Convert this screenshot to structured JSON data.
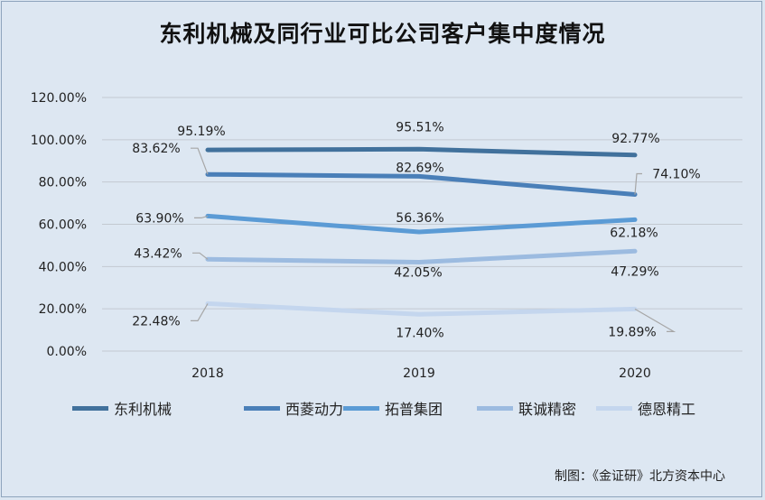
{
  "title": "东利机械及同行业可比公司客户集中度情况",
  "credit": "制图：《金证研》北方资本中心",
  "chart_data": {
    "type": "line",
    "title": "东利机械及同行业可比公司客户集中度情况",
    "categories": [
      "2018",
      "2019",
      "2020"
    ],
    "ylim": [
      0,
      120
    ],
    "yticks": [
      "0.00%",
      "20.00%",
      "40.00%",
      "60.00%",
      "80.00%",
      "100.00%",
      "120.00%"
    ],
    "grid": true,
    "legend_position": "bottom",
    "series": [
      {
        "name": "东利机械",
        "color": "#41719c",
        "values": [
          95.19,
          95.51,
          92.77
        ],
        "labels": [
          "95.19%",
          "95.51%",
          "92.77%"
        ]
      },
      {
        "name": "西菱动力",
        "color": "#4a7fb8",
        "values": [
          83.62,
          82.69,
          74.1
        ],
        "labels": [
          "83.62%",
          "82.69%",
          "74.10%"
        ]
      },
      {
        "name": "拓普集团",
        "color": "#5b9bd5",
        "values": [
          63.9,
          56.36,
          62.18
        ],
        "labels": [
          "63.90%",
          "56.36%",
          "62.18%"
        ]
      },
      {
        "name": "联诚精密",
        "color": "#9cbbe0",
        "values": [
          43.42,
          42.05,
          47.29
        ],
        "labels": [
          "43.42%",
          "42.05%",
          "47.29%"
        ]
      },
      {
        "name": "德恩精工",
        "color": "#c4d6ee",
        "values": [
          22.48,
          17.4,
          19.89
        ],
        "labels": [
          "22.48%",
          "17.40%",
          "19.89%"
        ]
      }
    ]
  }
}
